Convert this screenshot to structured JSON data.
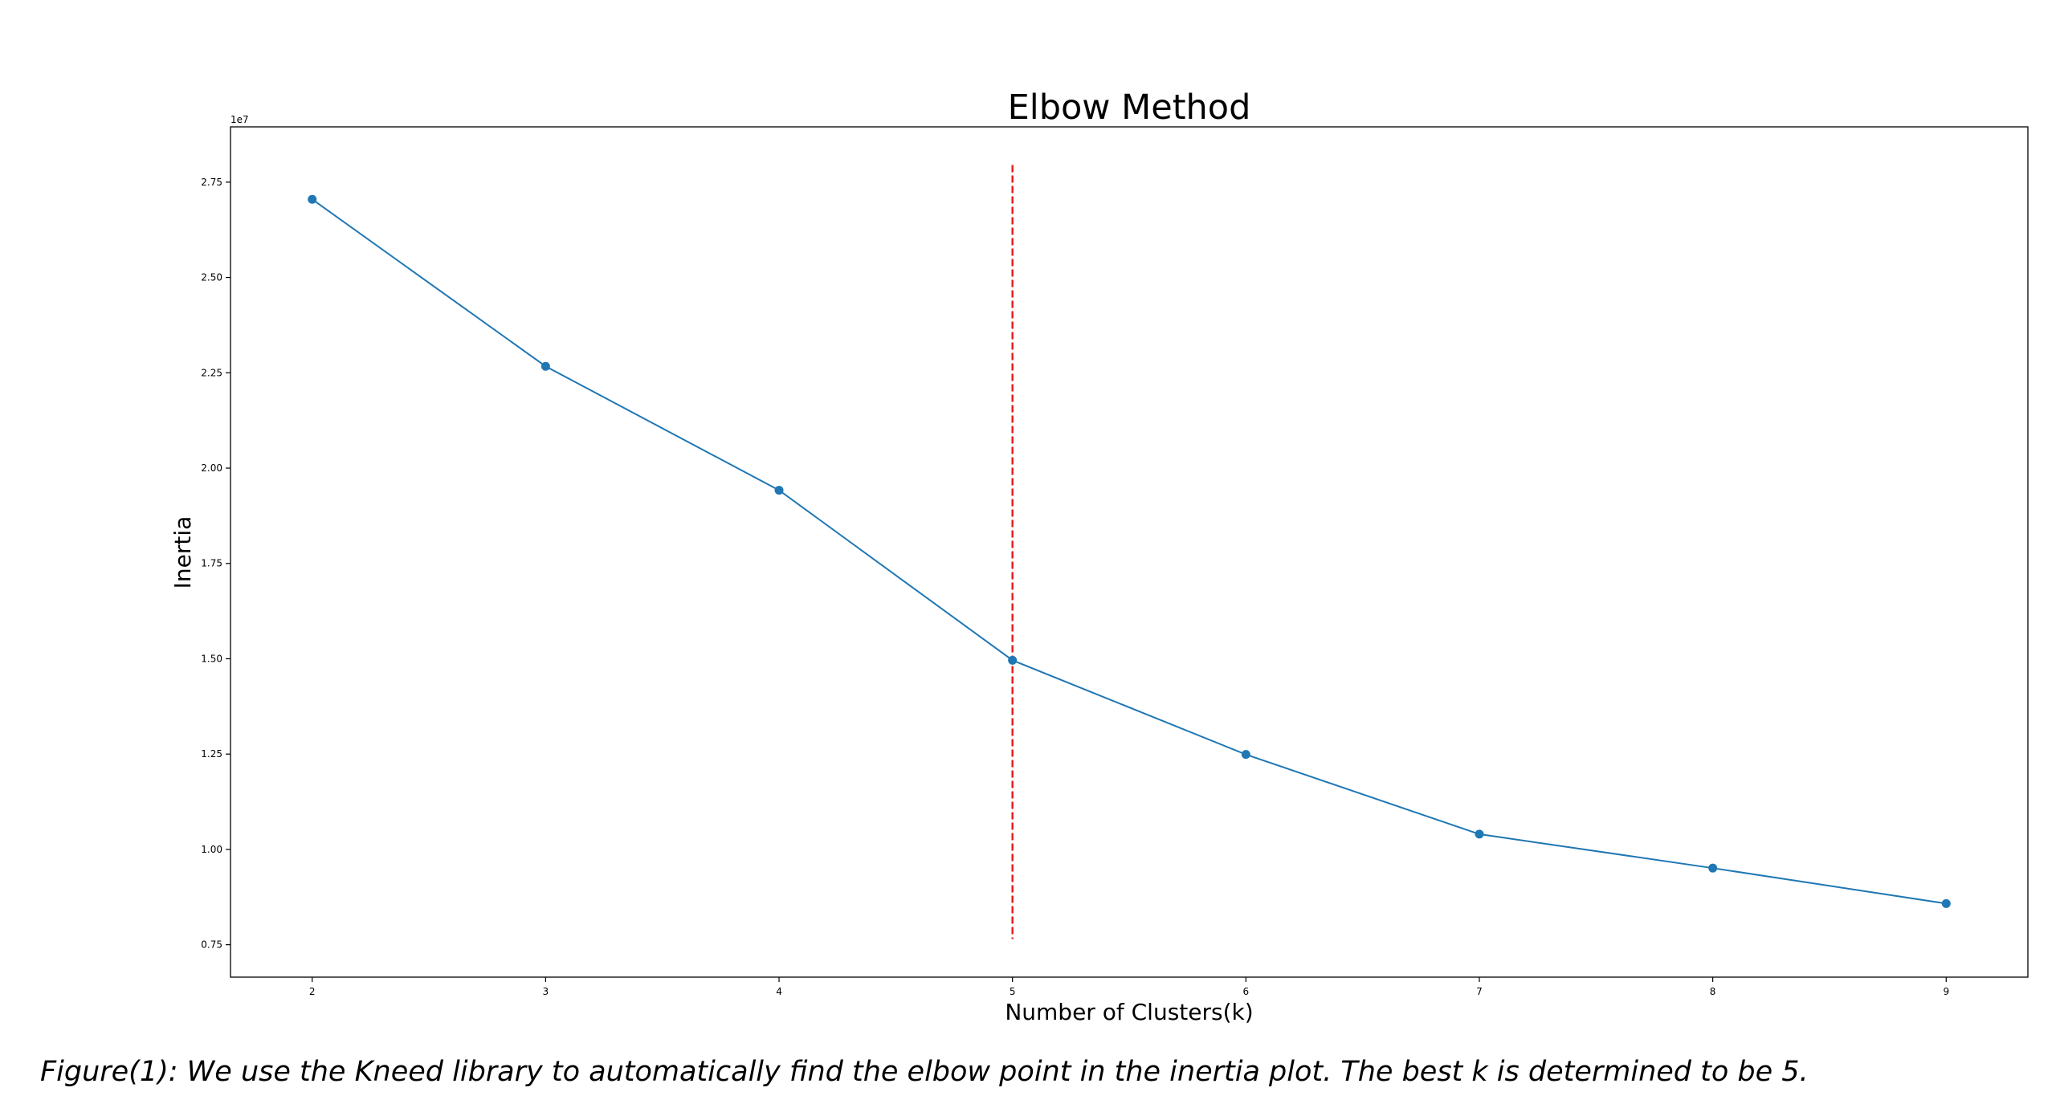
{
  "chart_data": {
    "type": "line",
    "title": "Elbow Method",
    "xlabel": "Number of Clusters(k)",
    "ylabel": "Inertia",
    "y_offset_label": "1e7",
    "x": [
      2,
      3,
      4,
      5,
      6,
      7,
      8,
      9
    ],
    "series": [
      {
        "values": [
          2.705,
          2.267,
          1.942,
          1.496,
          1.249,
          1.04,
          0.951,
          0.858
        ],
        "color": "#1f77b4",
        "marker": "circle"
      }
    ],
    "xlim": [
      1.65,
      9.35
    ],
    "ylim": [
      0.665,
      2.895
    ],
    "xticks": [
      2,
      3,
      4,
      5,
      6,
      7,
      8,
      9
    ],
    "xtick_labels": [
      "2",
      "3",
      "4",
      "5",
      "6",
      "7",
      "8",
      "9"
    ],
    "yticks": [
      0.75,
      1.0,
      1.25,
      1.5,
      1.75,
      2.0,
      2.25,
      2.5,
      2.75
    ],
    "ytick_labels": [
      "0.75",
      "1.00",
      "1.25",
      "1.50",
      "1.75",
      "2.00",
      "2.25",
      "2.50",
      "2.75"
    ],
    "vline": {
      "x": 5,
      "ymin": 0.765,
      "ymax": 2.795,
      "color": "#e31a1c",
      "style": "dashed"
    },
    "grid": false,
    "legend": "none"
  },
  "caption": "Figure(1): We use the Kneed library to automatically find the elbow point in the inertia plot. The best k is determined to be 5."
}
